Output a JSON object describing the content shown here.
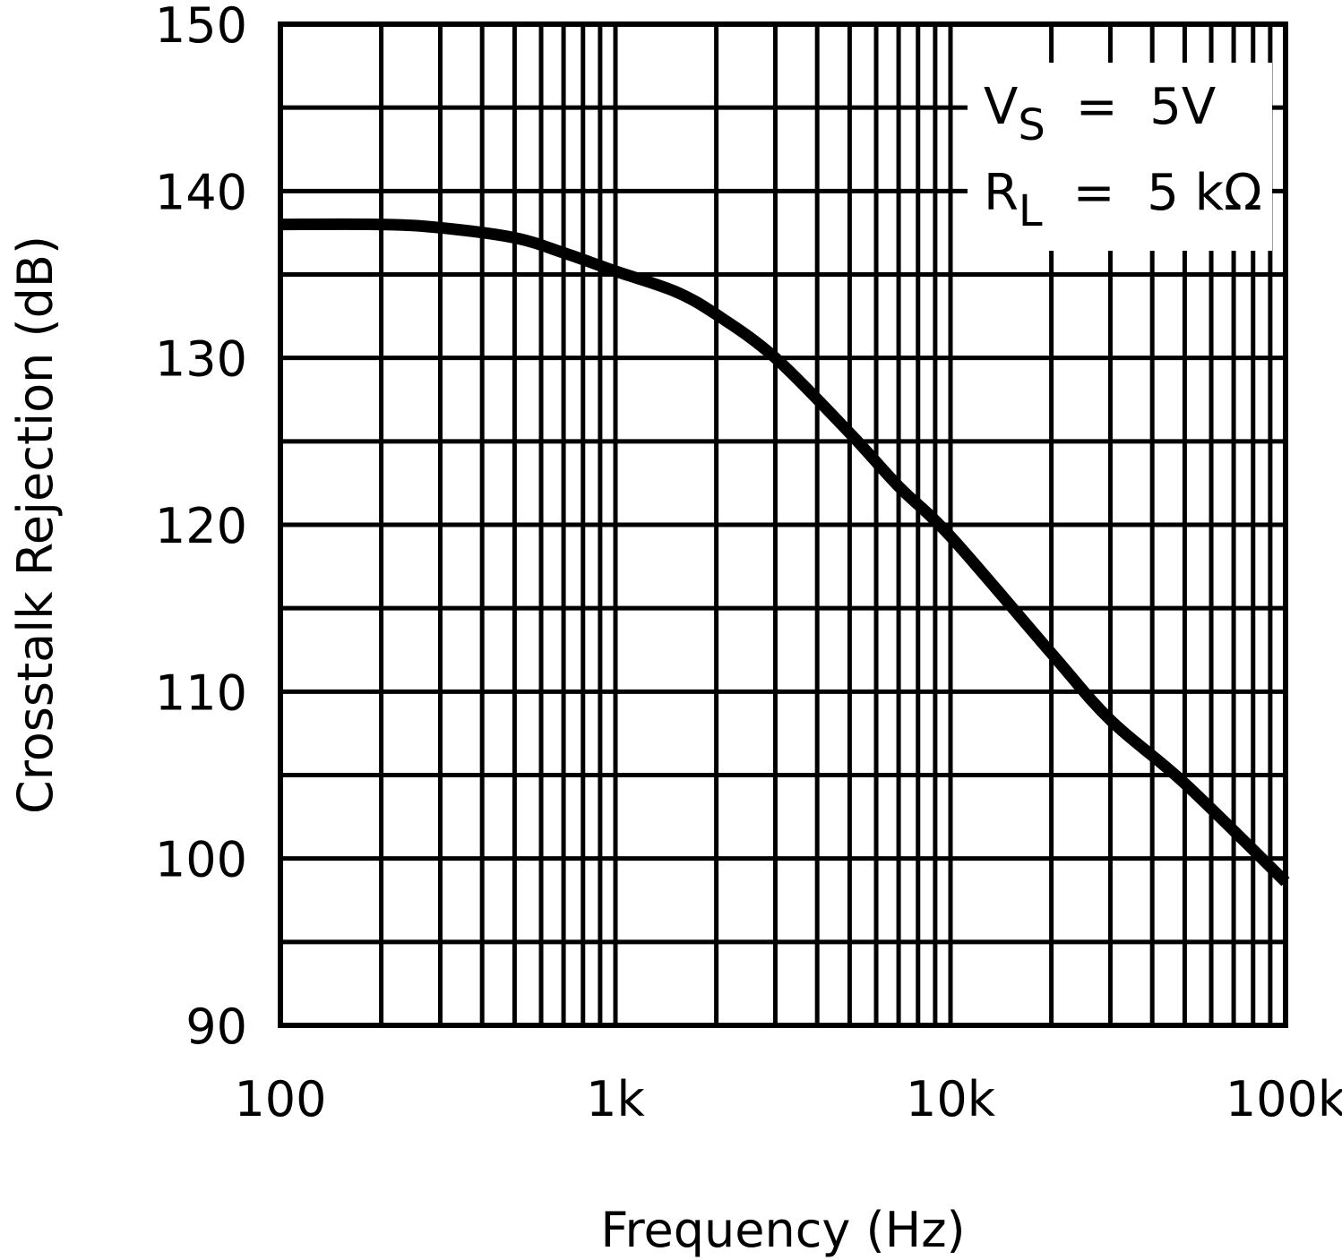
{
  "chart_data": {
    "type": "line",
    "title": "",
    "xlabel": "Frequency (Hz)",
    "ylabel": "Crosstalk Rejection (dB)",
    "xscale": "log",
    "xlim": [
      100,
      100000
    ],
    "ylim": [
      90,
      150
    ],
    "grid": true,
    "x_tick_labels": [
      "100",
      "1k",
      "10k",
      "100k"
    ],
    "x_ticks": [
      100,
      1000,
      10000,
      100000
    ],
    "y_ticks": [
      90,
      100,
      110,
      120,
      130,
      140,
      150
    ],
    "y_tick_labels": [
      "90",
      "100",
      "110",
      "120",
      "130",
      "140",
      "150"
    ],
    "annotations": [
      {
        "text": "VS = 5V",
        "main": "V",
        "sub": "S",
        "rest": "=  5V"
      },
      {
        "text": "RL = 5 kΩ",
        "main": "R",
        "sub": "L",
        "rest": "=  5 kΩ"
      }
    ],
    "series": [
      {
        "name": "Crosstalk Rejection",
        "x": [
          100,
          200,
          300,
          500,
          700,
          1000,
          1500,
          2000,
          3000,
          5000,
          7000,
          10000,
          20000,
          30000,
          50000,
          100000
        ],
        "y": [
          138,
          138,
          137.8,
          137.2,
          136.3,
          135.2,
          134,
          132.6,
          130,
          125.5,
          122.3,
          119.3,
          112.3,
          108.3,
          104.5,
          98.6
        ]
      }
    ]
  }
}
